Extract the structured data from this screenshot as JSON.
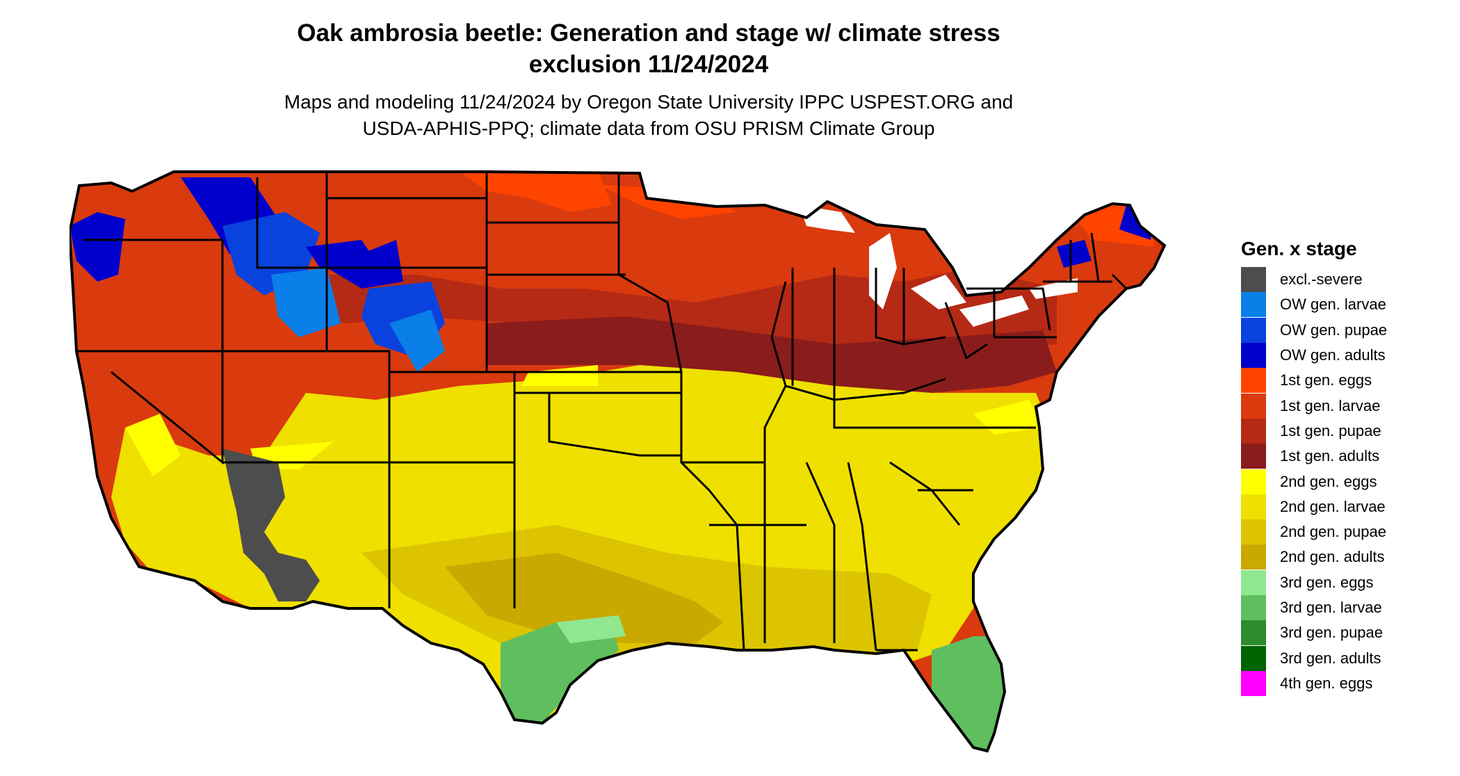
{
  "title_line1": "Oak ambrosia beetle: Generation and stage w/ climate stress",
  "title_line2": "exclusion 11/24/2024",
  "subtitle_line1": "Maps and modeling 11/24/2024 by Oregon State University IPPC USPEST.ORG and",
  "subtitle_line2": "USDA-APHIS-PPQ; climate data from OSU PRISM Climate Group",
  "legend": {
    "title": "Gen. x stage",
    "items": [
      {
        "label": "excl.-severe",
        "color": "#4d4d4d"
      },
      {
        "label": "OW gen. larvae",
        "color": "#0a7fe8"
      },
      {
        "label": "OW gen. pupae",
        "color": "#0a42dd"
      },
      {
        "label": "OW gen. adults",
        "color": "#0000cc"
      },
      {
        "label": "1st gen. eggs",
        "color": "#ff4400"
      },
      {
        "label": "1st gen. larvae",
        "color": "#d93a0e"
      },
      {
        "label": "1st gen. pupae",
        "color": "#b52a14"
      },
      {
        "label": "1st gen. adults",
        "color": "#8a1c1c"
      },
      {
        "label": "2nd gen. eggs",
        "color": "#ffff00"
      },
      {
        "label": "2nd gen. larvae",
        "color": "#efe000"
      },
      {
        "label": "2nd gen. pupae",
        "color": "#dcc400"
      },
      {
        "label": "2nd gen. adults",
        "color": "#c9a800"
      },
      {
        "label": "3rd gen. eggs",
        "color": "#8fe88f"
      },
      {
        "label": "3rd gen. larvae",
        "color": "#5fbf5f"
      },
      {
        "label": "3rd gen. pupae",
        "color": "#2e8b2e"
      },
      {
        "label": "3rd gen. adults",
        "color": "#006400"
      },
      {
        "label": "4th gen. eggs",
        "color": "#ff00ff"
      }
    ]
  }
}
